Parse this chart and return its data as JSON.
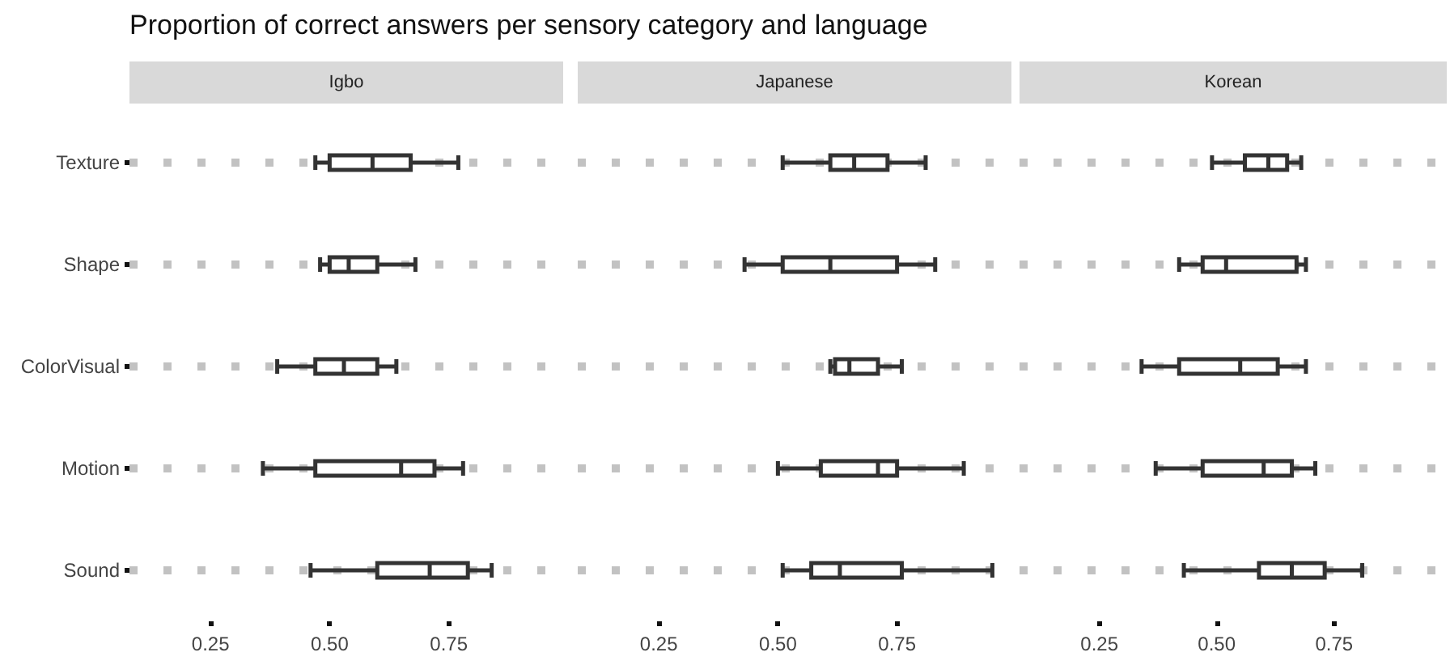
{
  "chart_data": [
    {
      "type": "box",
      "title": "Proportion of correct answers per sensory category and language",
      "subtitle": "Igbo",
      "orientation": "horizontal",
      "categories": [
        "Texture",
        "Shape",
        "ColorVisual",
        "Motion",
        "Sound"
      ],
      "xlim": [
        0.08,
        0.99
      ],
      "xticks": [
        {
          "value": 0.25,
          "label": "0.25"
        },
        {
          "value": 0.5,
          "label": "0.50"
        },
        {
          "value": 0.75,
          "label": "0.75"
        }
      ],
      "grid": "y",
      "series": [
        {
          "color": "#333333",
          "boxes": [
            {
              "low": 0.47,
              "q1": 0.5,
              "median": 0.59,
              "q3": 0.67,
              "high": 0.77
            },
            {
              "low": 0.48,
              "q1": 0.5,
              "median": 0.54,
              "q3": 0.6,
              "high": 0.68
            },
            {
              "low": 0.39,
              "q1": 0.47,
              "median": 0.53,
              "q3": 0.6,
              "high": 0.64
            },
            {
              "low": 0.36,
              "q1": 0.47,
              "median": 0.65,
              "q3": 0.72,
              "high": 0.78
            },
            {
              "low": 0.46,
              "q1": 0.6,
              "median": 0.71,
              "q3": 0.79,
              "high": 0.84
            }
          ]
        }
      ]
    },
    {
      "type": "box",
      "subtitle": "Japanese",
      "orientation": "horizontal",
      "categories": [
        null,
        null,
        null,
        null,
        null
      ],
      "xlim": [
        0.08,
        0.99
      ],
      "xticks": [
        {
          "value": 0.25,
          "label": "0.25"
        },
        {
          "value": 0.5,
          "label": "0.50"
        },
        {
          "value": 0.75,
          "label": "0.75"
        }
      ],
      "grid": "y",
      "tick_labels": "x",
      "series": [
        {
          "color": "#333333",
          "boxes": [
            {
              "low": 0.51,
              "q1": 0.61,
              "median": 0.66,
              "q3": 0.73,
              "high": 0.81
            },
            {
              "low": 0.43,
              "q1": 0.51,
              "median": 0.61,
              "q3": 0.75,
              "high": 0.83
            },
            {
              "low": 0.61,
              "q1": 0.62,
              "median": 0.65,
              "q3": 0.71,
              "high": 0.76
            },
            {
              "low": 0.5,
              "q1": 0.59,
              "median": 0.71,
              "q3": 0.75,
              "high": 0.89
            },
            {
              "low": 0.51,
              "q1": 0.57,
              "median": 0.63,
              "q3": 0.76,
              "high": 0.95
            }
          ]
        }
      ]
    },
    {
      "type": "box",
      "subtitle": "Korean",
      "orientation": "horizontal",
      "categories": [
        null,
        null,
        null,
        null,
        null
      ],
      "xlim": [
        0.08,
        0.99
      ],
      "xticks": [
        {
          "value": 0.25,
          "label": "0.25"
        },
        {
          "value": 0.5,
          "label": "0.50"
        },
        {
          "value": 0.75,
          "label": "0.75"
        }
      ],
      "grid": "y",
      "tick_labels": "x",
      "series": [
        {
          "color": "#333333",
          "boxes": [
            {
              "low": 0.49,
              "q1": 0.56,
              "median": 0.61,
              "q3": 0.65,
              "high": 0.68
            },
            {
              "low": 0.42,
              "q1": 0.47,
              "median": 0.52,
              "q3": 0.67,
              "high": 0.69
            },
            {
              "low": 0.34,
              "q1": 0.42,
              "median": 0.55,
              "q3": 0.63,
              "high": 0.69
            },
            {
              "low": 0.37,
              "q1": 0.47,
              "median": 0.6,
              "q3": 0.66,
              "high": 0.71
            },
            {
              "low": 0.43,
              "q1": 0.59,
              "median": 0.66,
              "q3": 0.73,
              "high": 0.81
            }
          ]
        }
      ]
    }
  ]
}
